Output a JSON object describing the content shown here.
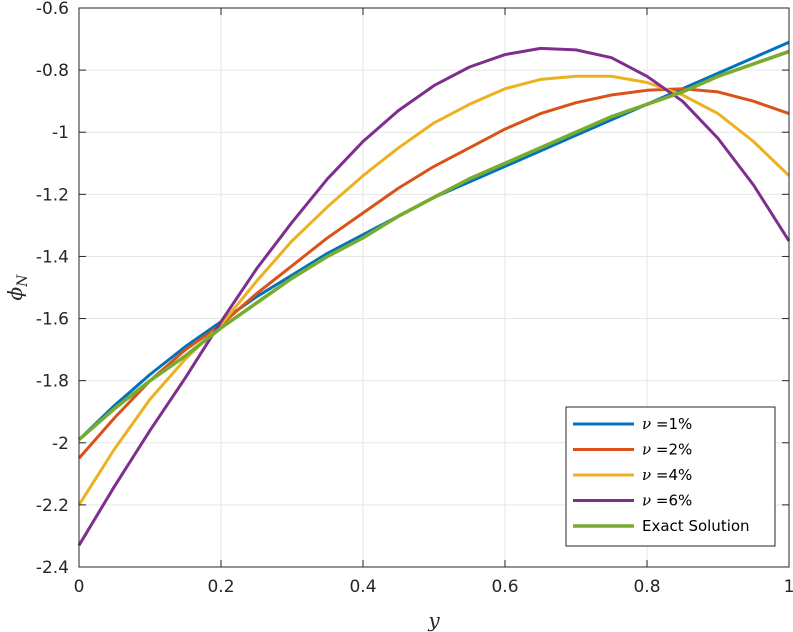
{
  "chart_data": {
    "type": "line",
    "xlabel": "y",
    "ylabel": "ϕ",
    "ylabel_sub": "N",
    "xlim": [
      0,
      1
    ],
    "ylim": [
      -2.4,
      -0.6
    ],
    "xticks": [
      0,
      0.2,
      0.4,
      0.6,
      0.8,
      1
    ],
    "xtick_labels": [
      "0",
      "0.2",
      "0.4",
      "0.6",
      "0.8",
      "1"
    ],
    "yticks": [
      -2.4,
      -2.2,
      -2.0,
      -1.8,
      -1.6,
      -1.4,
      -1.2,
      -1.0,
      -0.8,
      -0.6
    ],
    "ytick_labels": [
      "-2.4",
      "-2.2",
      "-2",
      "-1.8",
      "-1.6",
      "-1.4",
      "-1.2",
      "-1",
      "-0.8",
      "-0.6"
    ],
    "grid": true,
    "legend_position": "bottom-right",
    "x": [
      0,
      0.05,
      0.1,
      0.15,
      0.2,
      0.25,
      0.3,
      0.35,
      0.4,
      0.45,
      0.5,
      0.55,
      0.6,
      0.65,
      0.7,
      0.75,
      0.8,
      0.85,
      0.9,
      0.95,
      1.0
    ],
    "series": [
      {
        "name": "=1%",
        "prefix": "ν",
        "color": "#0072BD",
        "values": [
          -1.99,
          -1.88,
          -1.78,
          -1.69,
          -1.61,
          -1.53,
          -1.46,
          -1.39,
          -1.33,
          -1.27,
          -1.21,
          -1.16,
          -1.11,
          -1.06,
          -1.01,
          -0.96,
          -0.91,
          -0.86,
          -0.81,
          -0.76,
          -0.71
        ]
      },
      {
        "name": "=2%",
        "prefix": "ν",
        "color": "#D95319",
        "values": [
          -2.05,
          -1.92,
          -1.8,
          -1.7,
          -1.62,
          -1.52,
          -1.43,
          -1.34,
          -1.26,
          -1.18,
          -1.11,
          -1.05,
          -0.99,
          -0.94,
          -0.905,
          -0.88,
          -0.865,
          -0.86,
          -0.87,
          -0.9,
          -0.94
        ]
      },
      {
        "name": "=4%",
        "prefix": "ν",
        "color": "#EDB120",
        "values": [
          -2.2,
          -2.02,
          -1.86,
          -1.73,
          -1.62,
          -1.48,
          -1.35,
          -1.24,
          -1.14,
          -1.05,
          -0.97,
          -0.91,
          -0.86,
          -0.83,
          -0.82,
          -0.82,
          -0.84,
          -0.88,
          -0.94,
          -1.03,
          -1.14
        ]
      },
      {
        "name": "=6%",
        "prefix": "ν",
        "color": "#7E2F8E",
        "values": [
          -2.33,
          -2.14,
          -1.96,
          -1.79,
          -1.61,
          -1.44,
          -1.29,
          -1.15,
          -1.03,
          -0.93,
          -0.85,
          -0.79,
          -0.75,
          -0.73,
          -0.735,
          -0.76,
          -0.82,
          -0.9,
          -1.02,
          -1.17,
          -1.35
        ]
      },
      {
        "name": "Exact Solution",
        "prefix": "",
        "color": "#77AC30",
        "values": [
          -1.99,
          -1.89,
          -1.8,
          -1.72,
          -1.63,
          -1.55,
          -1.47,
          -1.4,
          -1.34,
          -1.27,
          -1.21,
          -1.15,
          -1.1,
          -1.05,
          -1.0,
          -0.95,
          -0.91,
          -0.87,
          -0.82,
          -0.78,
          -0.74
        ]
      }
    ]
  }
}
